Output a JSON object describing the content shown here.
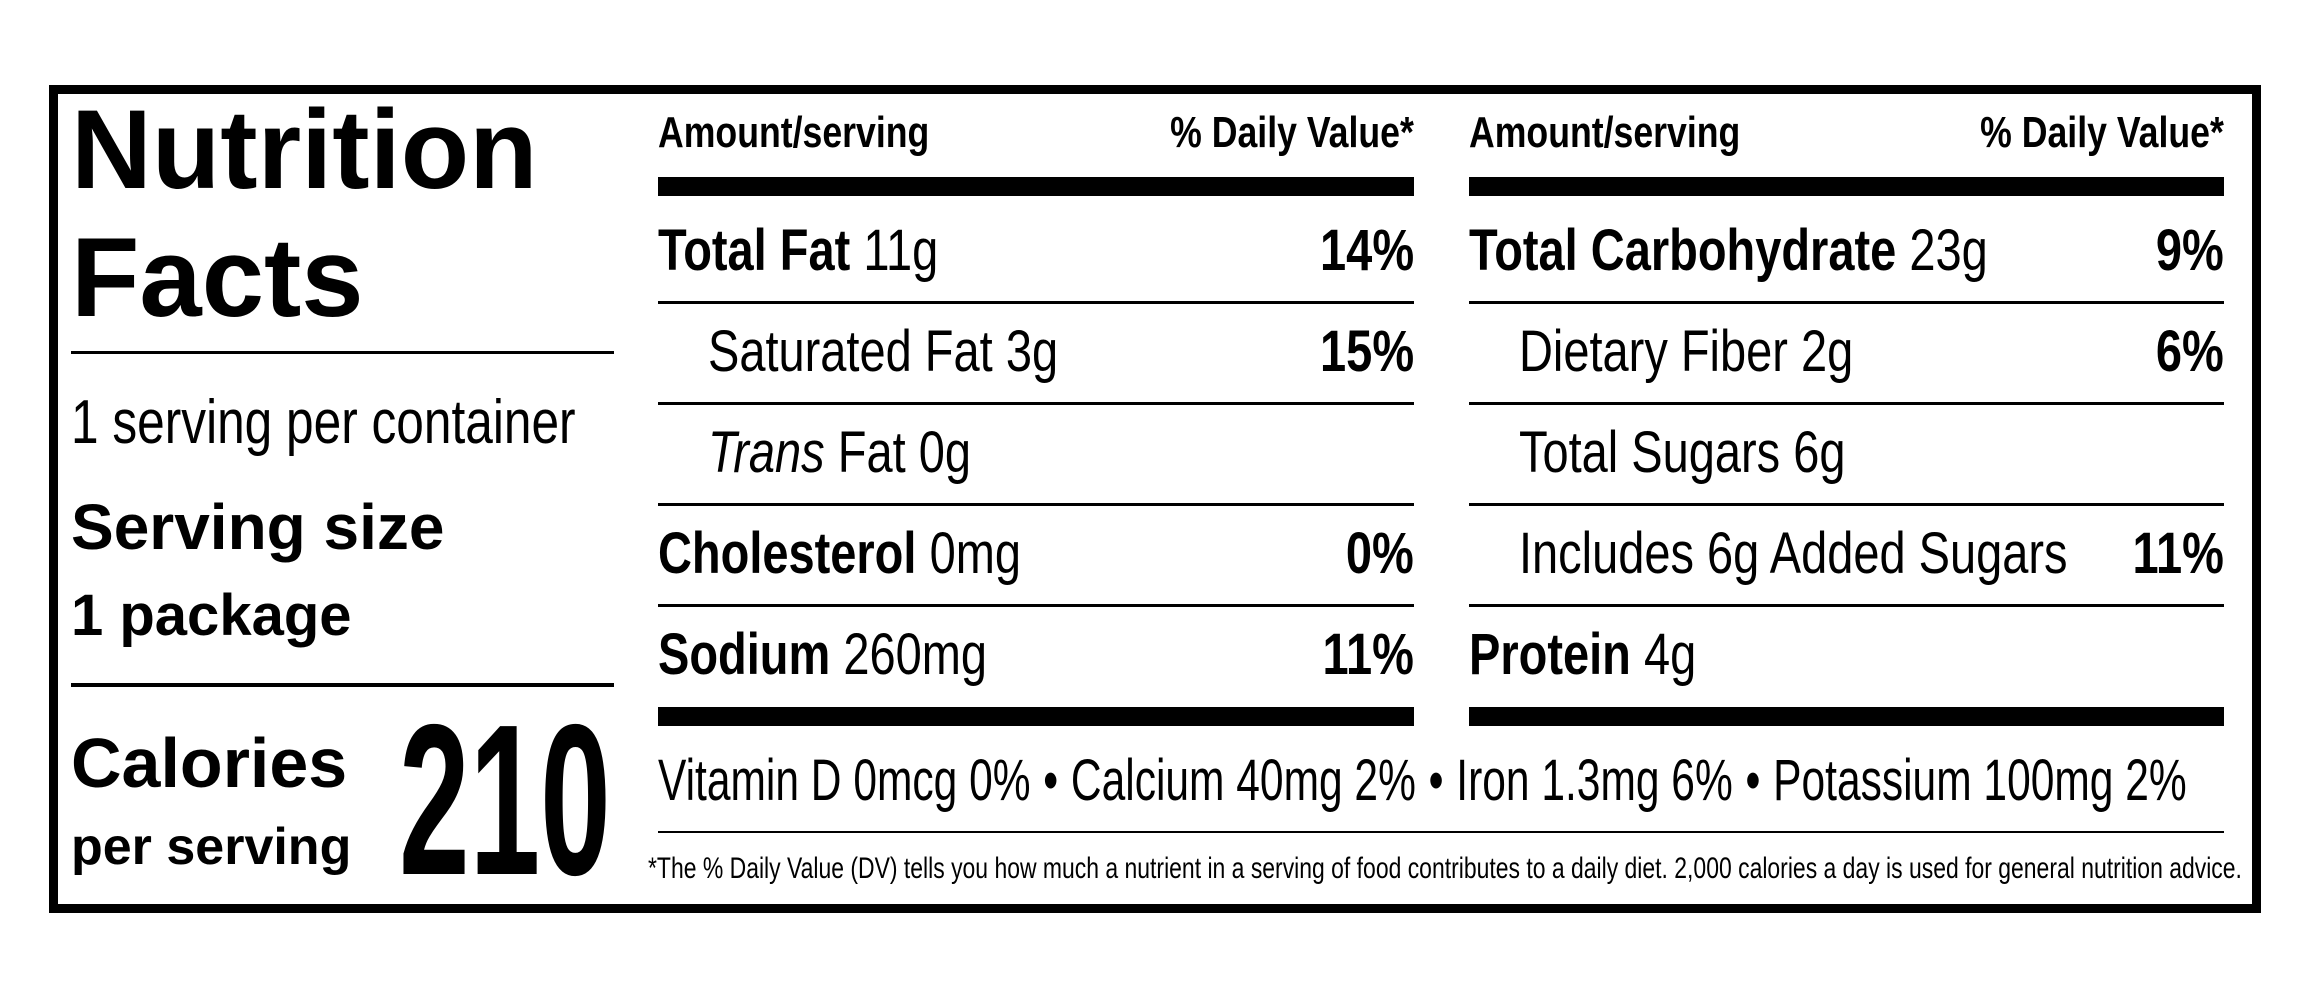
{
  "title": "Nutrition Facts",
  "servings_per_container": "1 serving per container",
  "serving_size_label": "Serving size",
  "serving_size": "1 package",
  "calories_label": "Calories",
  "calories_sublabel": "per serving",
  "calories": 210,
  "columns": [
    {
      "header_amount": "Amount/serving",
      "header_dv": "% Daily Value*",
      "rows": [
        {
          "name": "Total Fat",
          "amount": "11g",
          "dv": "14%",
          "bold": true,
          "indent": false
        },
        {
          "name": "Saturated Fat",
          "amount": "3g",
          "dv": "15%",
          "bold": false,
          "indent": true
        },
        {
          "name_italic": "Trans",
          "name": "Fat",
          "amount": "0g",
          "bold": false,
          "indent": true
        },
        {
          "name": "Cholesterol",
          "amount": "0mg",
          "dv": "0%",
          "bold": true,
          "indent": false
        },
        {
          "name": "Sodium",
          "amount": "260mg",
          "dv": "11%",
          "bold": true,
          "indent": false
        }
      ]
    },
    {
      "header_amount": "Amount/serving",
      "header_dv": "% Daily Value*",
      "rows": [
        {
          "name": "Total Carbohydrate",
          "amount": "23g",
          "dv": "9%",
          "bold": true,
          "indent": false
        },
        {
          "name": "Dietary Fiber",
          "amount": "2g",
          "dv": "6%",
          "bold": false,
          "indent": true
        },
        {
          "name": "Total Sugars",
          "amount": "6g",
          "bold": false,
          "indent": true
        },
        {
          "name": "Includes 6g Added Sugars",
          "dv": "11%",
          "bold": false,
          "indent": true
        },
        {
          "name": "Protein",
          "amount": "4g",
          "bold": true,
          "indent": false
        }
      ]
    }
  ],
  "vitamins": [
    "Vitamin D 0mcg 0%",
    "Calcium 40mg 2%",
    "Iron 1.3mg 6%",
    "Potassium 100mg 2%"
  ],
  "separator": "•",
  "footnote": "*The % Daily Value (DV) tells you how much a nutrient in a serving of food contributes to a daily diet. 2,000 calories a day is used for general nutrition advice."
}
